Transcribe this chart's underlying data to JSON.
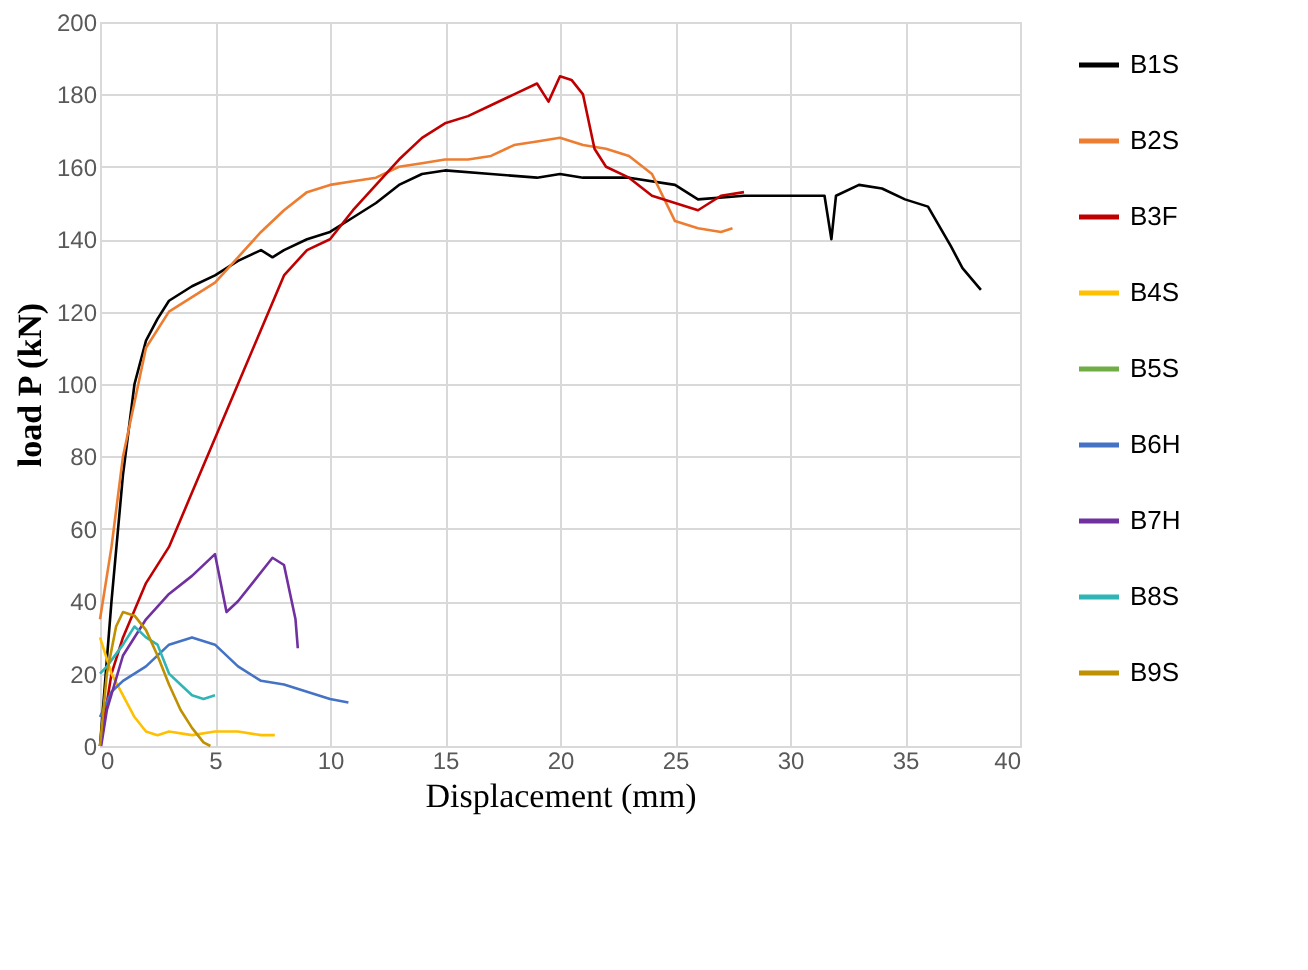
{
  "chart_data": {
    "type": "line",
    "xlabel": "Displacement (mm)",
    "ylabel": "load P (kN)",
    "xlim": [
      0,
      40
    ],
    "xticks": [
      0,
      5,
      10,
      15,
      20,
      25,
      30,
      35,
      40
    ],
    "ylim": [
      0,
      200
    ],
    "yticks": [
      0,
      20,
      40,
      60,
      80,
      100,
      120,
      140,
      160,
      180,
      200
    ],
    "grid": true,
    "legend": "right",
    "line_style": "solid",
    "marker": "none",
    "series": [
      {
        "name": "B1S",
        "color": "#000000",
        "x": [
          0,
          0.5,
          1,
          1.5,
          2,
          2.5,
          3,
          4,
          5,
          6,
          7,
          7.5,
          8,
          9,
          10,
          11,
          12,
          13,
          14,
          15,
          17,
          19,
          20,
          21,
          23,
          25,
          26,
          28,
          30,
          31.5,
          31.8,
          32,
          33,
          34,
          35,
          36,
          37,
          37.5,
          38.3
        ],
        "values": [
          0,
          40,
          75,
          100,
          112,
          118,
          123,
          127,
          130,
          134,
          137,
          135,
          137,
          140,
          142,
          146,
          150,
          155,
          158,
          159,
          158,
          157,
          158,
          157,
          157,
          155,
          151,
          152,
          152,
          152,
          140,
          152,
          155,
          154,
          151,
          149,
          138,
          132,
          126
        ]
      },
      {
        "name": "B2S",
        "color": "#ed7d31",
        "x": [
          0,
          0.5,
          1,
          2,
          3,
          4,
          5,
          6,
          7,
          8,
          9,
          10,
          11,
          12,
          13,
          14,
          15,
          16,
          17,
          18,
          19,
          20,
          21,
          22,
          23,
          24,
          25,
          26,
          27,
          27.5
        ],
        "values": [
          35,
          55,
          80,
          110,
          120,
          124,
          128,
          135,
          142,
          148,
          153,
          155,
          156,
          157,
          160,
          161,
          162,
          162,
          163,
          166,
          167,
          168,
          166,
          165,
          163,
          158,
          145,
          143,
          142,
          143
        ]
      },
      {
        "name": "B3F",
        "color": "#c00000",
        "x": [
          0,
          0.5,
          1,
          2,
          3,
          4,
          5,
          6,
          7,
          8,
          9,
          10,
          11,
          12,
          13,
          14,
          15,
          16,
          17,
          18,
          19,
          19.5,
          20,
          20.5,
          21,
          21.5,
          22,
          23,
          24,
          25,
          26,
          27,
          28
        ],
        "values": [
          0,
          20,
          30,
          45,
          55,
          70,
          85,
          100,
          115,
          130,
          137,
          140,
          148,
          155,
          162,
          168,
          172,
          174,
          177,
          180,
          183,
          178,
          185,
          184,
          180,
          165,
          160,
          157,
          152,
          150,
          148,
          152,
          153
        ]
      },
      {
        "name": "B4S",
        "color": "#ffc000",
        "x": [
          0,
          0.5,
          1,
          1.5,
          2,
          2.5,
          3,
          4,
          5,
          6,
          7,
          7.6
        ],
        "values": [
          30,
          20,
          14,
          8,
          4,
          3,
          4,
          3,
          4,
          4,
          3,
          3
        ]
      },
      {
        "name": "B5S",
        "color": "#70ad47"
      },
      {
        "name": "B6H",
        "color": "#4472c4",
        "x": [
          0,
          0.5,
          1,
          2,
          3,
          4,
          5,
          6,
          7,
          8,
          9,
          10,
          10.8
        ],
        "values": [
          8,
          15,
          18,
          22,
          28,
          30,
          28,
          22,
          18,
          17,
          15,
          13,
          12
        ]
      },
      {
        "name": "B7H",
        "color": "#7030a0",
        "x": [
          0.05,
          0.3,
          1,
          2,
          3,
          4,
          5,
          5.5,
          6,
          7,
          7.5,
          8,
          8.5,
          8.6
        ],
        "values": [
          0,
          10,
          25,
          35,
          42,
          47,
          53,
          37,
          40,
          48,
          52,
          50,
          35,
          27
        ]
      },
      {
        "name": "B8S",
        "color": "#2fb5b5",
        "x": [
          0,
          0.3,
          1,
          1.5,
          2,
          2.5,
          3,
          3.5,
          4,
          4.5,
          5
        ],
        "values": [
          20,
          22,
          28,
          33,
          30,
          28,
          20,
          17,
          14,
          13,
          14
        ]
      },
      {
        "name": "B9S",
        "color": "#bf9000",
        "x": [
          0,
          0.3,
          0.7,
          1,
          1.5,
          2,
          2.5,
          3,
          3.5,
          4,
          4.5,
          4.8
        ],
        "values": [
          0,
          20,
          33,
          37,
          36,
          32,
          25,
          17,
          10,
          5,
          1,
          0
        ]
      }
    ]
  }
}
